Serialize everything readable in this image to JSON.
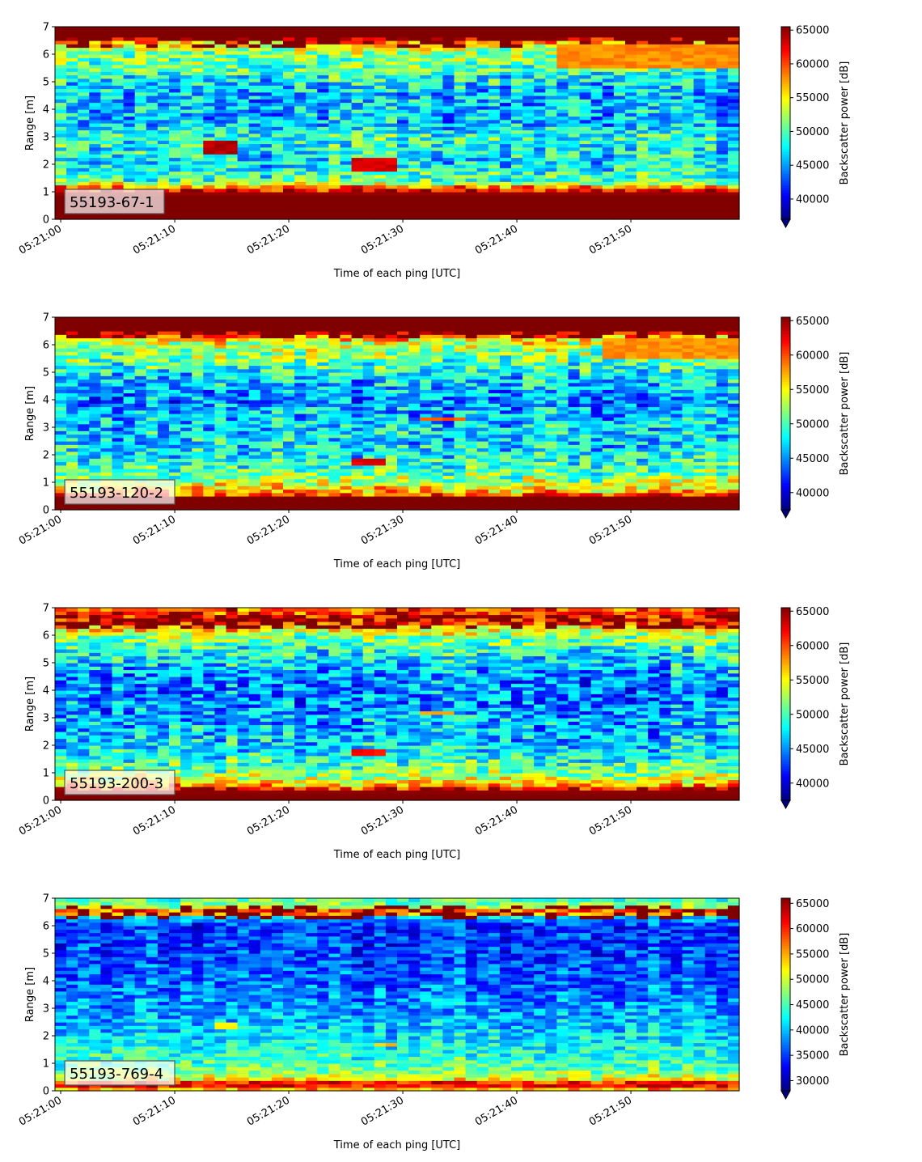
{
  "chart_data": [
    {
      "type": "heatmap",
      "label": "55193-67-1",
      "xlabel": "Time of each ping [UTC]",
      "ylabel": "Range [m]",
      "xticks": [
        "05:21:00",
        "05:21:10",
        "05:21:20",
        "05:21:30",
        "05:21:40",
        "05:21:50"
      ],
      "xlim_seconds_after": [
        -0.5,
        59.5
      ],
      "yticks": [
        0,
        1,
        2,
        3,
        4,
        5,
        6,
        7
      ],
      "ylim": [
        0,
        7
      ],
      "colorbar": {
        "label": "Backscatter power [dB]",
        "ticks": [
          40000,
          45000,
          50000,
          55000,
          60000,
          65000
        ],
        "vmin": 37000,
        "vmax": 65500,
        "extend": "min"
      },
      "colormap": "jet",
      "profile": [
        {
          "range": 0.15,
          "value": 65500
        },
        {
          "range": 0.5,
          "value": 65500
        },
        {
          "range": 0.9,
          "value": 65500
        },
        {
          "range": 1.1,
          "value": 62000
        },
        {
          "range": 1.4,
          "value": 50000
        },
        {
          "range": 2.0,
          "value": 47000
        },
        {
          "range": 2.6,
          "value": 48000
        },
        {
          "range": 3.0,
          "value": 49000
        },
        {
          "range": 3.5,
          "value": 46000
        },
        {
          "range": 4.0,
          "value": 46000
        },
        {
          "range": 4.5,
          "value": 46000
        },
        {
          "range": 5.0,
          "value": 47000
        },
        {
          "range": 5.5,
          "value": 50000
        },
        {
          "range": 6.0,
          "value": 51000
        },
        {
          "range": 6.4,
          "value": 55000
        },
        {
          "range": 6.6,
          "value": 65500
        },
        {
          "range": 7.0,
          "value": 65500
        }
      ],
      "features": [
        {
          "t_start": 13,
          "t_end": 15,
          "r_start": 2.4,
          "r_end": 2.9,
          "value": 64000
        },
        {
          "t_start": 26,
          "t_end": 29,
          "r_start": 1.8,
          "r_end": 2.3,
          "value": 63000
        },
        {
          "t_start": 44,
          "t_end": 59,
          "r_start": 5.5,
          "r_end": 6.4,
          "value": 58000
        }
      ]
    },
    {
      "type": "heatmap",
      "label": "55193-120-2",
      "xlabel": "Time of each ping [UTC]",
      "ylabel": "Range [m]",
      "xticks": [
        "05:21:00",
        "05:21:10",
        "05:21:20",
        "05:21:30",
        "05:21:40",
        "05:21:50"
      ],
      "xlim_seconds_after": [
        -0.5,
        59.5
      ],
      "yticks": [
        0,
        1,
        2,
        3,
        4,
        5,
        6,
        7
      ],
      "ylim": [
        0,
        7
      ],
      "colorbar": {
        "label": "Backscatter power [dB]",
        "ticks": [
          40000,
          45000,
          50000,
          55000,
          60000,
          65000
        ],
        "vmin": 37500,
        "vmax": 65500,
        "extend": "min"
      },
      "colormap": "jet",
      "profile": [
        {
          "range": 0.15,
          "value": 65500
        },
        {
          "range": 0.45,
          "value": 65500
        },
        {
          "range": 0.6,
          "value": 58000
        },
        {
          "range": 1.0,
          "value": 53000
        },
        {
          "range": 1.5,
          "value": 50000
        },
        {
          "range": 2.0,
          "value": 48000
        },
        {
          "range": 2.5,
          "value": 47000
        },
        {
          "range": 3.0,
          "value": 47000
        },
        {
          "range": 3.5,
          "value": 46000
        },
        {
          "range": 4.0,
          "value": 45000
        },
        {
          "range": 4.5,
          "value": 46000
        },
        {
          "range": 5.0,
          "value": 48000
        },
        {
          "range": 5.5,
          "value": 51000
        },
        {
          "range": 6.0,
          "value": 53000
        },
        {
          "range": 6.3,
          "value": 58000
        },
        {
          "range": 6.5,
          "value": 65500
        },
        {
          "range": 7.0,
          "value": 65500
        }
      ],
      "features": [
        {
          "t_start": 26,
          "t_end": 28,
          "r_start": 1.6,
          "r_end": 1.9,
          "value": 63000
        },
        {
          "t_start": 32,
          "t_end": 35,
          "r_start": 3.2,
          "r_end": 3.4,
          "value": 60000
        },
        {
          "t_start": 48,
          "t_end": 59,
          "r_start": 5.5,
          "r_end": 6.2,
          "value": 58000
        }
      ]
    },
    {
      "type": "heatmap",
      "label": "55193-200-3",
      "xlabel": "Time of each ping [UTC]",
      "ylabel": "Range [m]",
      "xticks": [
        "05:21:00",
        "05:21:10",
        "05:21:20",
        "05:21:30",
        "05:21:40",
        "05:21:50"
      ],
      "xlim_seconds_after": [
        -0.5,
        59.5
      ],
      "yticks": [
        0,
        1,
        2,
        3,
        4,
        5,
        6,
        7
      ],
      "ylim": [
        0,
        7
      ],
      "colorbar": {
        "label": "Backscatter power [dB]",
        "ticks": [
          40000,
          45000,
          50000,
          55000,
          60000,
          65000
        ],
        "vmin": 37500,
        "vmax": 65500,
        "extend": "min"
      },
      "colormap": "jet",
      "profile": [
        {
          "range": 0.15,
          "value": 65500
        },
        {
          "range": 0.35,
          "value": 65000
        },
        {
          "range": 0.6,
          "value": 56000
        },
        {
          "range": 1.0,
          "value": 52000
        },
        {
          "range": 1.5,
          "value": 49000
        },
        {
          "range": 2.0,
          "value": 47000
        },
        {
          "range": 2.5,
          "value": 46000
        },
        {
          "range": 3.0,
          "value": 46000
        },
        {
          "range": 3.5,
          "value": 45000
        },
        {
          "range": 4.0,
          "value": 44500
        },
        {
          "range": 4.5,
          "value": 45000
        },
        {
          "range": 5.0,
          "value": 47000
        },
        {
          "range": 5.5,
          "value": 49000
        },
        {
          "range": 6.0,
          "value": 52000
        },
        {
          "range": 6.3,
          "value": 57000
        },
        {
          "range": 6.6,
          "value": 63000
        },
        {
          "range": 7.0,
          "value": 60000
        }
      ],
      "features": [
        {
          "t_start": 26,
          "t_end": 28,
          "r_start": 1.6,
          "r_end": 1.9,
          "value": 62000
        },
        {
          "t_start": 32,
          "t_end": 34,
          "r_start": 3.1,
          "r_end": 3.3,
          "value": 58000
        }
      ]
    },
    {
      "type": "heatmap",
      "label": "55193-769-4",
      "xlabel": "Time of each ping [UTC]",
      "ylabel": "Range [m]",
      "xticks": [
        "05:21:00",
        "05:21:10",
        "05:21:20",
        "05:21:30",
        "05:21:40",
        "05:21:50"
      ],
      "xlim_seconds_after": [
        -0.5,
        59.5
      ],
      "yticks": [
        0,
        1,
        2,
        3,
        4,
        5,
        6,
        7
      ],
      "ylim": [
        0,
        7
      ],
      "colorbar": {
        "label": "Backscatter power [dB]",
        "ticks": [
          30000,
          35000,
          40000,
          45000,
          50000,
          55000,
          60000,
          65000
        ],
        "vmin": 28000,
        "vmax": 66000,
        "extend": "min"
      },
      "colormap": "jet",
      "profile": [
        {
          "range": 0.1,
          "value": 55000
        },
        {
          "range": 0.25,
          "value": 66000
        },
        {
          "range": 0.4,
          "value": 52000
        },
        {
          "range": 0.8,
          "value": 46000
        },
        {
          "range": 1.2,
          "value": 44000
        },
        {
          "range": 1.7,
          "value": 42500
        },
        {
          "range": 2.2,
          "value": 40500
        },
        {
          "range": 3.0,
          "value": 38500
        },
        {
          "range": 4.0,
          "value": 36500
        },
        {
          "range": 5.0,
          "value": 35500
        },
        {
          "range": 6.0,
          "value": 34500
        },
        {
          "range": 6.3,
          "value": 40000
        },
        {
          "range": 6.5,
          "value": 62000
        },
        {
          "range": 6.7,
          "value": 48000
        },
        {
          "range": 7.0,
          "value": 45000
        }
      ],
      "features": [
        {
          "t_start": 14,
          "t_end": 15,
          "r_start": 2.3,
          "r_end": 2.5,
          "value": 52000
        },
        {
          "t_start": 28,
          "t_end": 29,
          "r_start": 1.6,
          "r_end": 1.8,
          "value": 54000
        }
      ]
    }
  ]
}
